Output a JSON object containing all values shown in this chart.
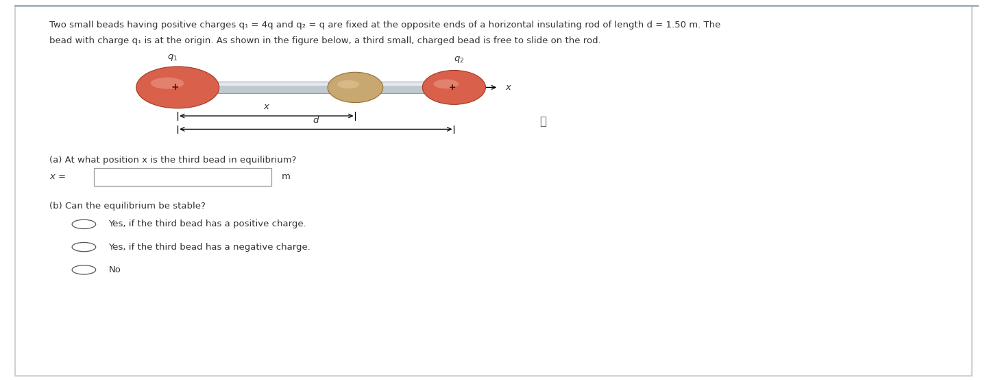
{
  "bg_color": "#ffffff",
  "border_color": "#c8c8c8",
  "fig_width": 14.4,
  "fig_height": 5.54,
  "line1": "Two small beads having positive charges q₁ = 4q and q₂ = q are fixed at the opposite ends of a horizontal insulating rod of length d = 1.50 m. The",
  "line2": "bead with charge q₁ is at the origin. As shown in the figure below, a third small, charged bead is free to slide on the rod.",
  "bead1_color": "#d9604a",
  "bead1_highlight": "#e89080",
  "bead2_color": "#c8a870",
  "bead2_highlight": "#dfc090",
  "bead3_color": "#d9604a",
  "bead3_highlight": "#e89080",
  "rod_color_main": "#c0c8d0",
  "rod_color_edge": "#9098a0",
  "rod_color_highlight": "#e4e8ec",
  "text_color": "#333333",
  "question_a": "(a) At what position x is the third bead in equilibrium?",
  "question_b": "(b) Can the equilibrium be stable?",
  "option1": "Yes, if the third bead has a positive charge.",
  "option2": "Yes, if the third bead has a negative charge.",
  "option3": "No"
}
